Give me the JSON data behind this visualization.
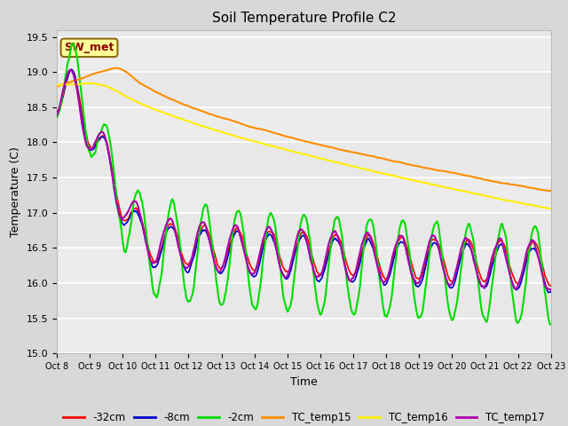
{
  "title": "Soil Temperature Profile C2",
  "xlabel": "Time",
  "ylabel": "Temperature (C)",
  "ylim": [
    15.0,
    19.6
  ],
  "yticks": [
    15.0,
    15.5,
    16.0,
    16.5,
    17.0,
    17.5,
    18.0,
    18.5,
    19.0,
    19.5
  ],
  "bg_color": "#d8d8d8",
  "plot_bg_color": "#e8e8e8",
  "grid_color": "#ffffff",
  "annotation_text": "SW_met",
  "annotation_bg": "#ffff99",
  "annotation_border": "#8b6914",
  "annotation_text_color": "#8b0000",
  "x_labels": [
    "Oct 8",
    "Oct 9",
    "Oct 10",
    "Oct 11",
    "Oct 12",
    "Oct 13",
    "Oct 14",
    "Oct 15",
    "Oct 16",
    "Oct 17",
    "Oct 18",
    "Oct 19",
    "Oct 20",
    "Oct 21",
    "Oct 22",
    "Oct 23"
  ],
  "series": {
    "-32cm": {
      "color": "#ff0000",
      "lw": 1.2
    },
    "-8cm": {
      "color": "#0000cc",
      "lw": 1.2
    },
    "-2cm": {
      "color": "#00dd00",
      "lw": 1.5
    },
    "TC_temp15": {
      "color": "#ff8c00",
      "lw": 1.5
    },
    "TC_temp16": {
      "color": "#ffee00",
      "lw": 1.5
    },
    "TC_temp17": {
      "color": "#aa00aa",
      "lw": 1.5
    }
  }
}
